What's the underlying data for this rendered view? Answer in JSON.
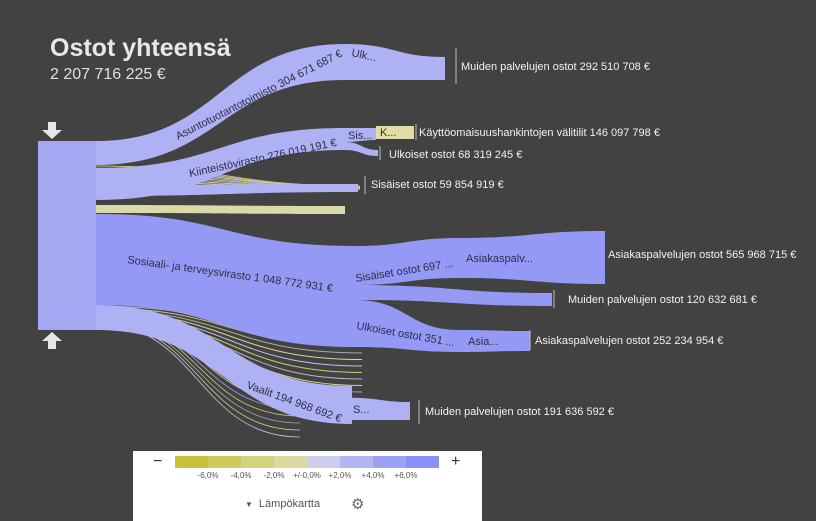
{
  "header": {
    "title": "Ostot yhteensä",
    "total": "2 207 716 225 €"
  },
  "legend": {
    "minus": "−",
    "plus": "+",
    "ticks": [
      "-6,0%",
      "-4,0%",
      "-2,0%",
      "+/-0,0%",
      "+2,0%",
      "+4,0%",
      "+6,0%"
    ],
    "colors": [
      "#c6c23a",
      "#cdc95a",
      "#d5d27e",
      "#ddd9a2",
      "#ccccec",
      "#b4b6f2",
      "#9da1f4",
      "#8b90f6"
    ],
    "mode_label": "Lämpökartta",
    "caret": "▼",
    "gear": "⚙"
  },
  "colors": {
    "background": "#424242",
    "flow_main": "#9499f5",
    "flow_light": "#aeb1f4",
    "flow_pale": "#dad9a8",
    "source": "#a4a8f3",
    "arrow": "#e6e6e6"
  },
  "chart_data": {
    "type": "sankey",
    "unit": "€",
    "total": 2207716225,
    "title": "Ostot yhteensä",
    "nodes_level1": [
      {
        "id": "asunto",
        "label": "Asuntotuotantotoimisto 304 671 687 €",
        "value": 304671687
      },
      {
        "id": "kiinteisto",
        "label": "Kiinteistövirasto 276 019 191 €",
        "value": 276019191
      },
      {
        "id": "sote",
        "label": "Sosiaali- ja terveysvirasto 1 048 772 931 €",
        "value": 1048772931
      },
      {
        "id": "vaalit",
        "label": "Vaalit 194 968 692 €",
        "value": 194968692
      }
    ],
    "nodes_level2": [
      {
        "parent": "asunto",
        "label": "Ulk..."
      },
      {
        "parent": "kiinteisto",
        "label": "Sis..."
      },
      {
        "parent": "sote",
        "label": "Sisäiset ostot 697 ..."
      },
      {
        "parent": "sote",
        "label": "Ulkoiset ostot 351 ..."
      },
      {
        "parent": "vaalit",
        "label": "S..."
      }
    ],
    "nodes_level3": [
      {
        "parent": "kiinteisto",
        "label": "K..."
      },
      {
        "parent": "sote",
        "label": "Asiakaspalv..."
      },
      {
        "parent": "sote",
        "label": "Asia..."
      }
    ],
    "leaves": [
      {
        "label": "Muiden palvelujen ostot 292 510 708 €",
        "value": 292510708
      },
      {
        "label": "Käyttöomaisuushankintojen välitilit 146 097 798 €",
        "value": 146097798
      },
      {
        "label": "Ulkoiset ostot 68 319 245 €",
        "value": 68319245
      },
      {
        "label": "Sisäiset ostot 59 854 919 €",
        "value": 59854919
      },
      {
        "label": "Asiakaspalvelujen ostot 565 968 715 €",
        "value": 565968715
      },
      {
        "label": "Muiden palvelujen ostot 120 632 681 €",
        "value": 120632681
      },
      {
        "label": "Asiakaspalvelujen ostot 252 234 954 €",
        "value": 252234954
      },
      {
        "label": "Muiden palvelujen ostot 191 636 592 €",
        "value": 191636592
      }
    ]
  }
}
